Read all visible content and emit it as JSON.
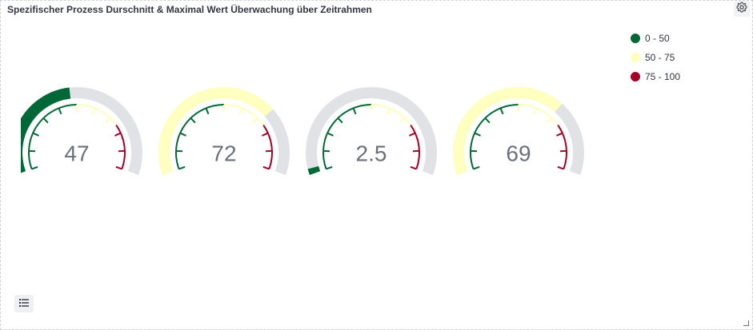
{
  "panel": {
    "title": "Spezifischer Prozess Durschnitt & Maximal Wert Überwachung über Zeitrahmen",
    "settings_icon": "gear-icon",
    "legend_toggle_icon": "list-icon"
  },
  "legend": [
    {
      "label": "0 - 50",
      "color": "#006837"
    },
    {
      "label": "50 - 75",
      "color": "#ffffbf"
    },
    {
      "label": "75 - 100",
      "color": "#a50026"
    }
  ],
  "gauges": [
    {
      "value": "47",
      "fraction": 0.47
    },
    {
      "value": "72",
      "fraction": 0.72
    },
    {
      "value": "2.5",
      "fraction": 0.025
    },
    {
      "value": "69",
      "fraction": 0.69
    }
  ],
  "scale": {
    "min": 0,
    "max": 100
  },
  "colors": {
    "track": "#e0e2e6",
    "low": "#006837",
    "mid": "#ffffbf",
    "high": "#a50026"
  }
}
